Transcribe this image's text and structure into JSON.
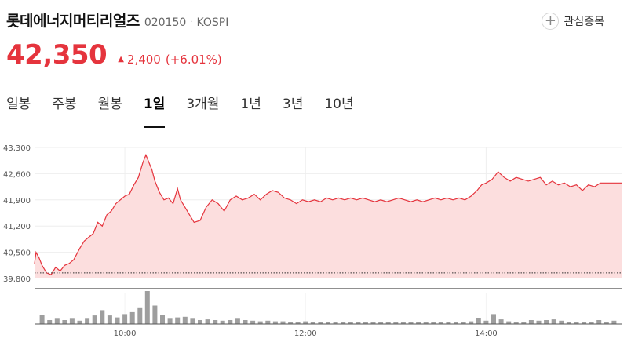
{
  "stock": {
    "name": "롯데에너지머티리얼즈",
    "code": "020150",
    "separator": "·",
    "market": "KOSPI",
    "watchlist_label": "관심종목",
    "watchlist_icon": "plus-icon"
  },
  "quote": {
    "price": "42,350",
    "change_arrow": "▲",
    "change": "2,400",
    "change_pct": "(+6.01%)",
    "color": "#e5343d"
  },
  "tabs": [
    "일봉",
    "주봉",
    "월봉",
    "1일",
    "3개월",
    "1년",
    "3년",
    "10년"
  ],
  "active_tab": "1일",
  "chart_data": {
    "type": "area",
    "ylim": [
      39800,
      43300
    ],
    "y_ticks": [
      "43,300",
      "42,600",
      "41,900",
      "41,200",
      "40,500",
      "39,800"
    ],
    "x_ticks": [
      "10:00",
      "12:00",
      "14:00"
    ],
    "x_tick_times": [
      "10:00",
      "12:00",
      "14:00"
    ],
    "previous_close": 39950,
    "line_color": "#e5343d",
    "fill_color": "#fcdede",
    "grid": true,
    "price_series": [
      [
        "09:00",
        40200
      ],
      [
        "09:01",
        40500
      ],
      [
        "09:03",
        40350
      ],
      [
        "09:05",
        40150
      ],
      [
        "09:08",
        39950
      ],
      [
        "09:11",
        39900
      ],
      [
        "09:14",
        40100
      ],
      [
        "09:17",
        40000
      ],
      [
        "09:20",
        40150
      ],
      [
        "09:23",
        40200
      ],
      [
        "09:26",
        40300
      ],
      [
        "09:30",
        40600
      ],
      [
        "09:33",
        40800
      ],
      [
        "09:36",
        40900
      ],
      [
        "09:39",
        41000
      ],
      [
        "09:42",
        41300
      ],
      [
        "09:45",
        41200
      ],
      [
        "09:48",
        41500
      ],
      [
        "09:51",
        41600
      ],
      [
        "09:54",
        41800
      ],
      [
        "09:57",
        41900
      ],
      [
        "10:00",
        42000
      ],
      [
        "10:03",
        42050
      ],
      [
        "10:06",
        42300
      ],
      [
        "10:09",
        42500
      ],
      [
        "10:12",
        42900
      ],
      [
        "10:14",
        43100
      ],
      [
        "10:16",
        42900
      ],
      [
        "10:18",
        42700
      ],
      [
        "10:20",
        42400
      ],
      [
        "10:23",
        42100
      ],
      [
        "10:26",
        41900
      ],
      [
        "10:29",
        41950
      ],
      [
        "10:32",
        41800
      ],
      [
        "10:35",
        42200
      ],
      [
        "10:37",
        41900
      ],
      [
        "10:40",
        41700
      ],
      [
        "10:43",
        41500
      ],
      [
        "10:46",
        41300
      ],
      [
        "10:50",
        41350
      ],
      [
        "10:54",
        41700
      ],
      [
        "10:58",
        41900
      ],
      [
        "11:02",
        41800
      ],
      [
        "11:06",
        41600
      ],
      [
        "11:10",
        41900
      ],
      [
        "11:14",
        42000
      ],
      [
        "11:18",
        41900
      ],
      [
        "11:22",
        41950
      ],
      [
        "11:26",
        42050
      ],
      [
        "11:30",
        41900
      ],
      [
        "11:34",
        42050
      ],
      [
        "11:38",
        42150
      ],
      [
        "11:42",
        42100
      ],
      [
        "11:46",
        41950
      ],
      [
        "11:50",
        41900
      ],
      [
        "11:54",
        41800
      ],
      [
        "11:58",
        41900
      ],
      [
        "12:02",
        41850
      ],
      [
        "12:06",
        41900
      ],
      [
        "12:10",
        41850
      ],
      [
        "12:14",
        41950
      ],
      [
        "12:18",
        41900
      ],
      [
        "12:22",
        41950
      ],
      [
        "12:26",
        41900
      ],
      [
        "12:30",
        41950
      ],
      [
        "12:34",
        41900
      ],
      [
        "12:38",
        41950
      ],
      [
        "12:42",
        41900
      ],
      [
        "12:46",
        41850
      ],
      [
        "12:50",
        41900
      ],
      [
        "12:54",
        41850
      ],
      [
        "12:58",
        41900
      ],
      [
        "13:02",
        41950
      ],
      [
        "13:06",
        41900
      ],
      [
        "13:10",
        41850
      ],
      [
        "13:14",
        41900
      ],
      [
        "13:18",
        41850
      ],
      [
        "13:22",
        41900
      ],
      [
        "13:26",
        41950
      ],
      [
        "13:30",
        41900
      ],
      [
        "13:34",
        41950
      ],
      [
        "13:38",
        41900
      ],
      [
        "13:42",
        41950
      ],
      [
        "13:46",
        41900
      ],
      [
        "13:50",
        42000
      ],
      [
        "13:54",
        42150
      ],
      [
        "13:57",
        42300
      ],
      [
        "14:00",
        42350
      ],
      [
        "14:04",
        42450
      ],
      [
        "14:08",
        42650
      ],
      [
        "14:12",
        42500
      ],
      [
        "14:16",
        42400
      ],
      [
        "14:20",
        42500
      ],
      [
        "14:24",
        42450
      ],
      [
        "14:28",
        42400
      ],
      [
        "14:32",
        42450
      ],
      [
        "14:36",
        42500
      ],
      [
        "14:40",
        42300
      ],
      [
        "14:44",
        42400
      ],
      [
        "14:48",
        42300
      ],
      [
        "14:52",
        42350
      ],
      [
        "14:56",
        42250
      ],
      [
        "15:00",
        42300
      ],
      [
        "15:04",
        42150
      ],
      [
        "15:08",
        42300
      ],
      [
        "15:12",
        42250
      ],
      [
        "15:16",
        42350
      ],
      [
        "15:20",
        42350
      ],
      [
        "15:30",
        42350
      ]
    ],
    "volume_series": [
      [
        "09:05",
        0.28
      ],
      [
        "09:10",
        0.12
      ],
      [
        "09:15",
        0.16
      ],
      [
        "09:20",
        0.12
      ],
      [
        "09:25",
        0.16
      ],
      [
        "09:30",
        0.1
      ],
      [
        "09:35",
        0.16
      ],
      [
        "09:40",
        0.26
      ],
      [
        "09:45",
        0.42
      ],
      [
        "09:50",
        0.26
      ],
      [
        "09:55",
        0.2
      ],
      [
        "10:00",
        0.3
      ],
      [
        "10:05",
        0.36
      ],
      [
        "10:10",
        0.48
      ],
      [
        "10:15",
        1.0
      ],
      [
        "10:20",
        0.56
      ],
      [
        "10:25",
        0.28
      ],
      [
        "10:30",
        0.16
      ],
      [
        "10:35",
        0.2
      ],
      [
        "10:40",
        0.22
      ],
      [
        "10:45",
        0.16
      ],
      [
        "10:50",
        0.12
      ],
      [
        "10:55",
        0.14
      ],
      [
        "11:00",
        0.12
      ],
      [
        "11:05",
        0.1
      ],
      [
        "11:10",
        0.12
      ],
      [
        "11:15",
        0.16
      ],
      [
        "11:20",
        0.12
      ],
      [
        "11:25",
        0.1
      ],
      [
        "11:30",
        0.08
      ],
      [
        "11:35",
        0.1
      ],
      [
        "11:40",
        0.08
      ],
      [
        "11:45",
        0.08
      ],
      [
        "11:50",
        0.06
      ],
      [
        "11:55",
        0.06
      ],
      [
        "12:00",
        0.08
      ],
      [
        "12:05",
        0.06
      ],
      [
        "12:10",
        0.06
      ],
      [
        "12:15",
        0.06
      ],
      [
        "12:20",
        0.06
      ],
      [
        "12:25",
        0.06
      ],
      [
        "12:30",
        0.06
      ],
      [
        "12:35",
        0.06
      ],
      [
        "12:40",
        0.06
      ],
      [
        "12:45",
        0.06
      ],
      [
        "12:50",
        0.06
      ],
      [
        "12:55",
        0.06
      ],
      [
        "13:00",
        0.06
      ],
      [
        "13:05",
        0.06
      ],
      [
        "13:10",
        0.06
      ],
      [
        "13:15",
        0.06
      ],
      [
        "13:20",
        0.06
      ],
      [
        "13:25",
        0.06
      ],
      [
        "13:30",
        0.06
      ],
      [
        "13:35",
        0.06
      ],
      [
        "13:40",
        0.06
      ],
      [
        "13:45",
        0.06
      ],
      [
        "13:50",
        0.08
      ],
      [
        "13:55",
        0.18
      ],
      [
        "14:00",
        0.1
      ],
      [
        "14:05",
        0.3
      ],
      [
        "14:10",
        0.14
      ],
      [
        "14:15",
        0.08
      ],
      [
        "14:20",
        0.06
      ],
      [
        "14:25",
        0.06
      ],
      [
        "14:30",
        0.12
      ],
      [
        "14:35",
        0.1
      ],
      [
        "14:40",
        0.12
      ],
      [
        "14:45",
        0.14
      ],
      [
        "14:50",
        0.1
      ],
      [
        "14:55",
        0.06
      ],
      [
        "15:00",
        0.06
      ],
      [
        "15:05",
        0.06
      ],
      [
        "15:10",
        0.06
      ],
      [
        "15:15",
        0.12
      ],
      [
        "15:20",
        0.06
      ],
      [
        "15:25",
        0.1
      ]
    ]
  }
}
